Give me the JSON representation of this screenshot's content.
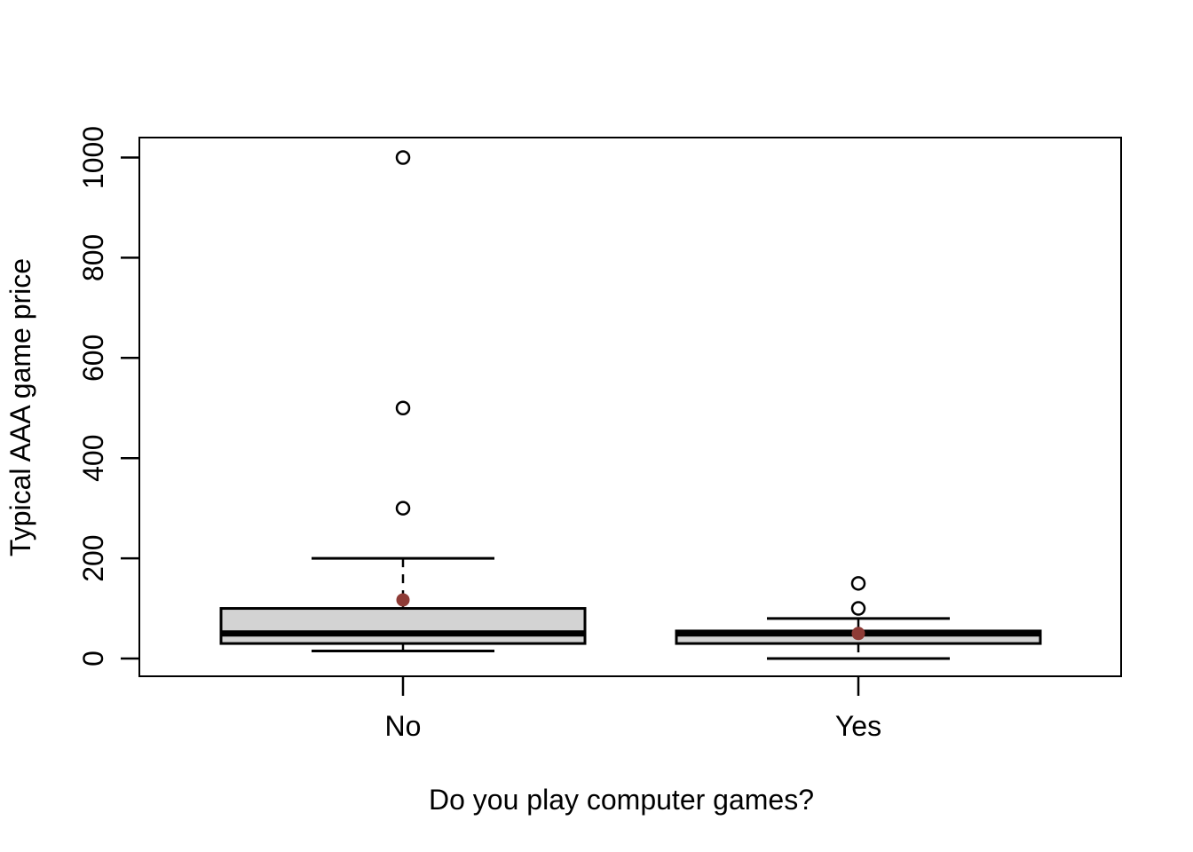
{
  "figure": {
    "background": "#FFFFFF"
  },
  "chart_data": {
    "type": "boxplot",
    "title": "",
    "xlabel": "Do you play computer games?",
    "ylabel": "Typical AAA game price",
    "categories": [
      "No",
      "Yes"
    ],
    "y_axis": {
      "min": -40,
      "max": 1040,
      "ticks": [
        0,
        200,
        400,
        600,
        800,
        1000
      ],
      "tick_labels": [
        "0",
        "200",
        "400",
        "600",
        "800",
        "1000"
      ]
    },
    "grid": false,
    "legend": null,
    "series": [
      {
        "category": "No",
        "lower_whisker": 15,
        "q1": 30,
        "median": 50,
        "q3": 100,
        "upper_whisker": 200,
        "outliers": [
          300,
          500,
          1000
        ],
        "mean": 117
      },
      {
        "category": "Yes",
        "lower_whisker": 0,
        "q1": 30,
        "median": 50,
        "q3": 55,
        "upper_whisker": 80,
        "outliers": [
          100,
          150
        ],
        "mean": 50
      }
    ],
    "style": {
      "box_fill": "#D3D3D3",
      "line_color": "#000000",
      "mean_dot_color": "#8E3B36",
      "text_color": "#000000",
      "whisker_style": "dashed",
      "outlier_marker": "open-circle",
      "background": "#FFFFFF"
    }
  }
}
